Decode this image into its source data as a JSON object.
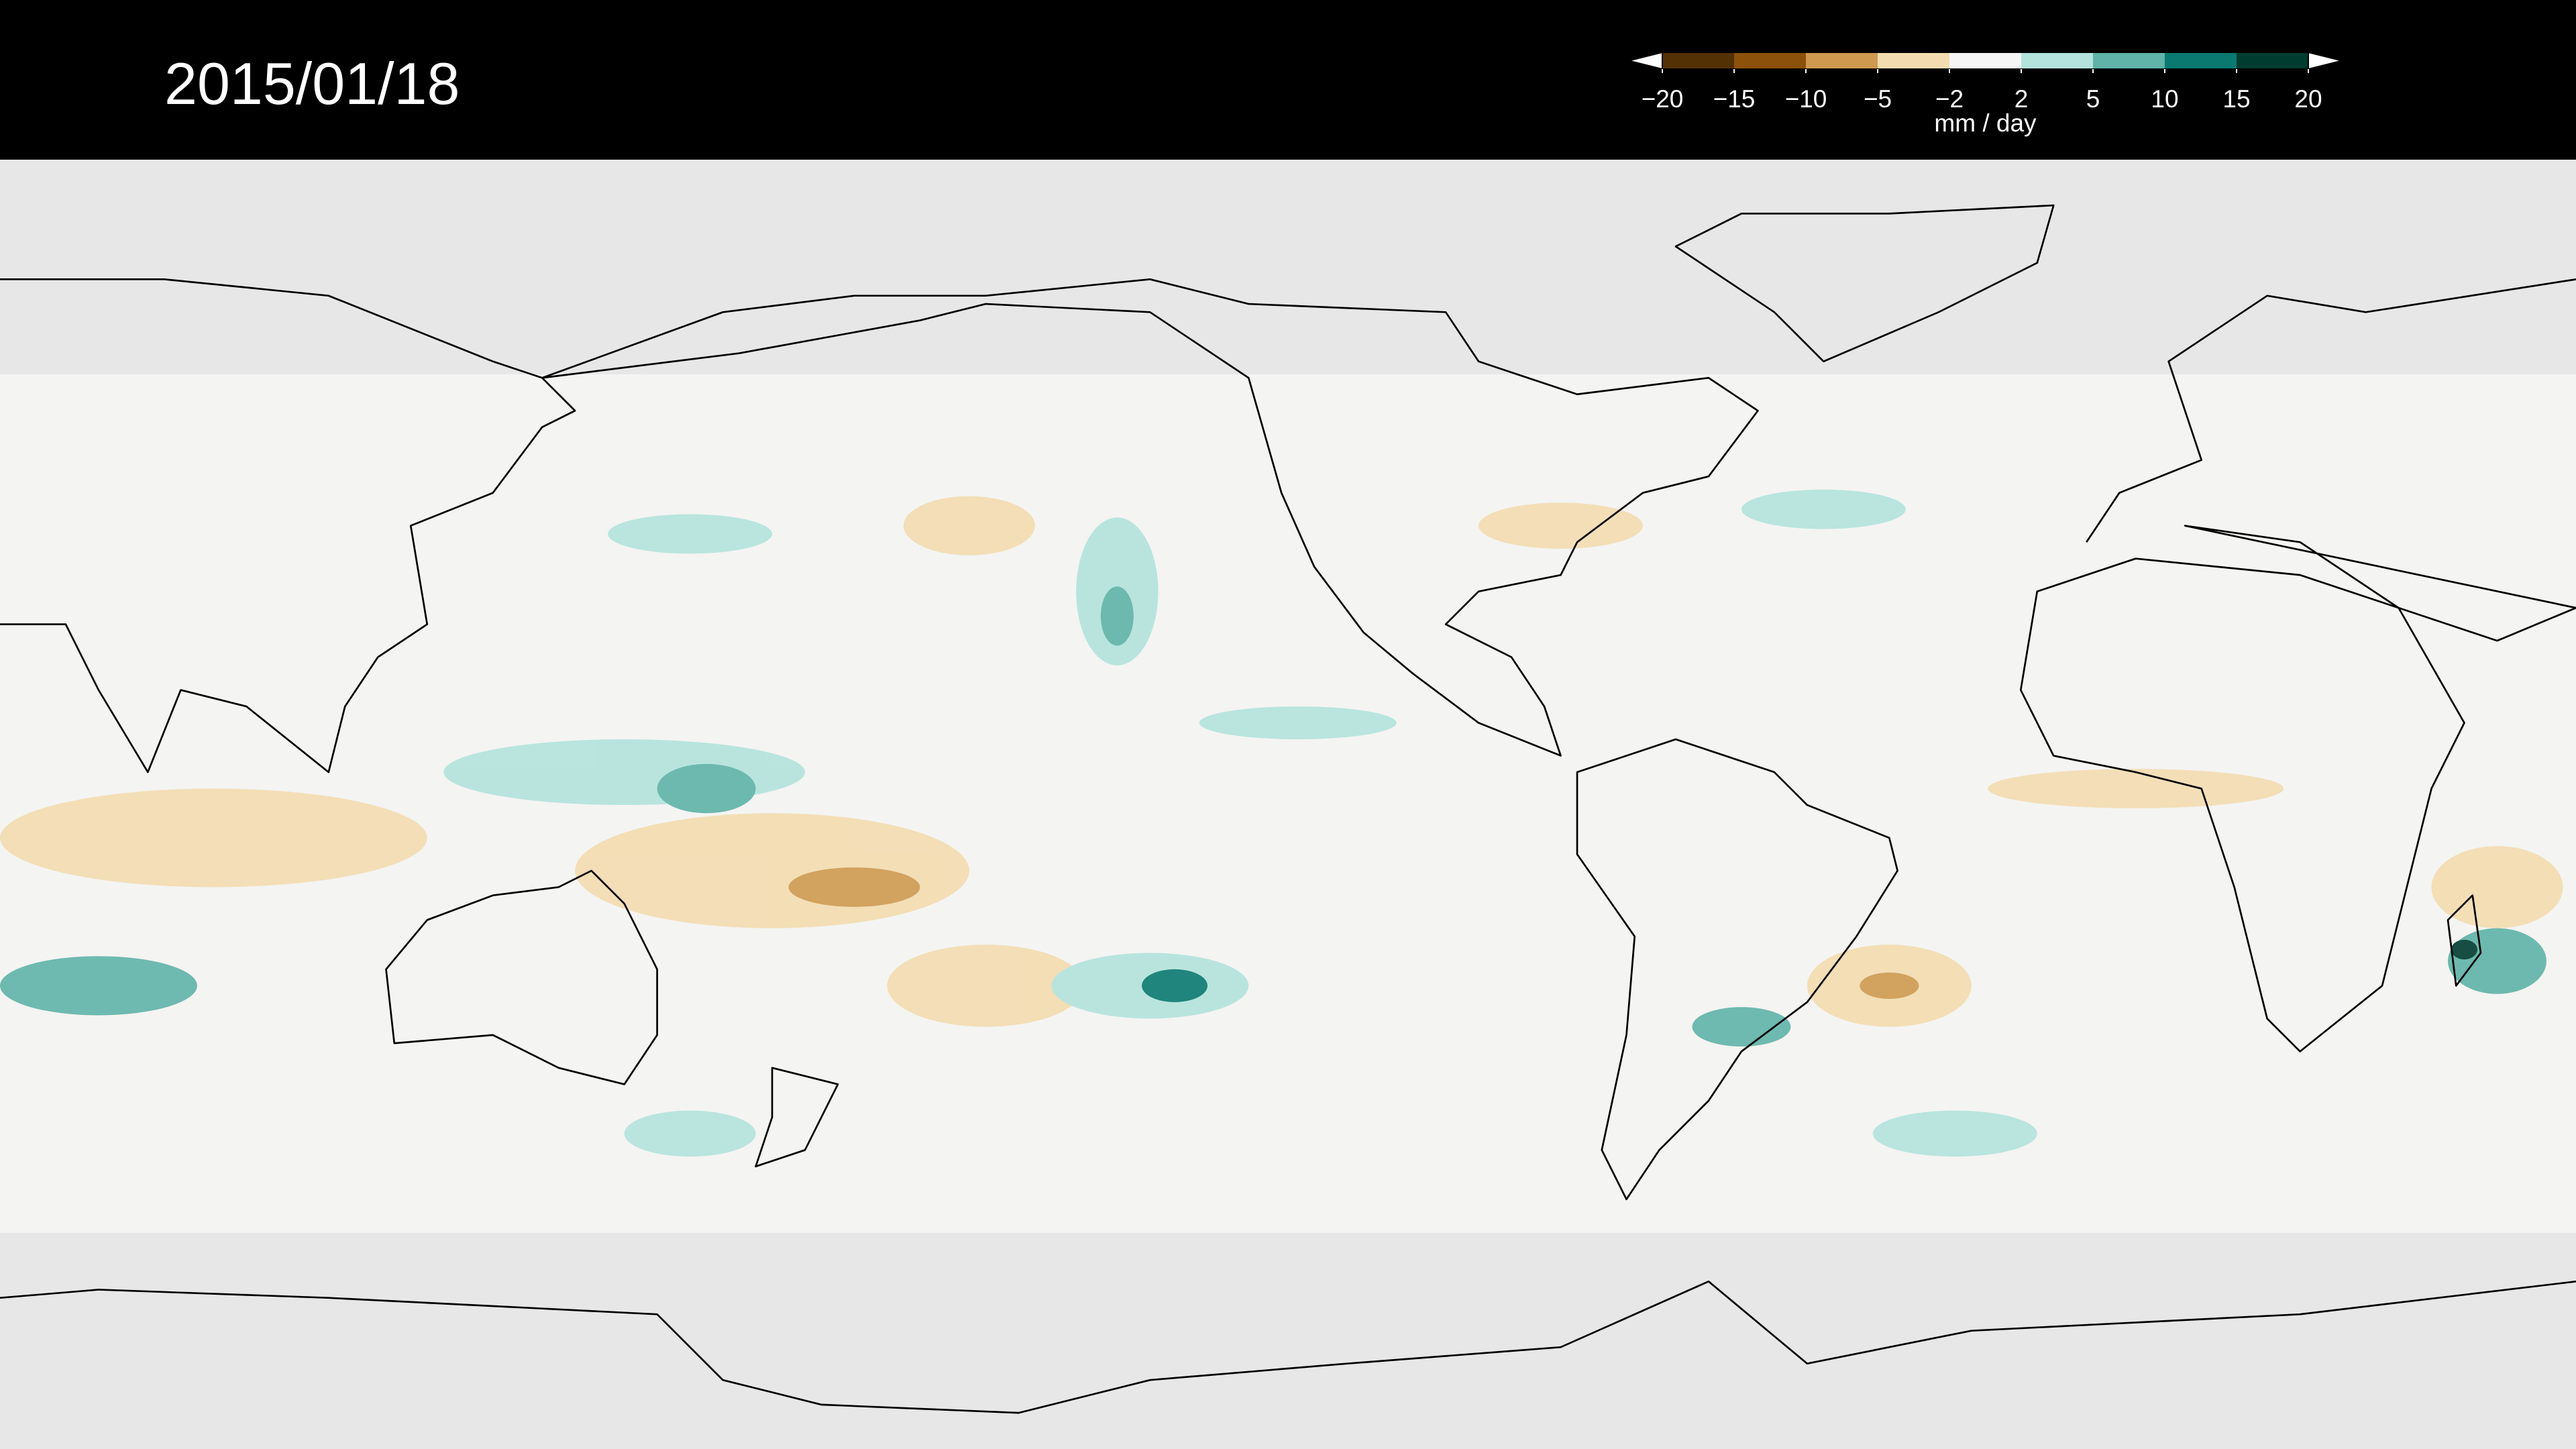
{
  "header": {
    "date": "2015/01/18"
  },
  "colorbar": {
    "unit": "mm / day",
    "ticks": [
      {
        "value": -20,
        "label": "−20"
      },
      {
        "value": -15,
        "label": "−15"
      },
      {
        "value": -10,
        "label": "−10"
      },
      {
        "value": -5,
        "label": "−5"
      },
      {
        "value": -2,
        "label": "−2"
      },
      2,
      5,
      10,
      15,
      20
    ],
    "colors": [
      "#543005",
      "#8c510a",
      "#cf9a50",
      "#f3dcb0",
      "#f5f5f5",
      "#b3e3dc",
      "#5fb3a8",
      "#0a7a70",
      "#003c30"
    ]
  }
}
